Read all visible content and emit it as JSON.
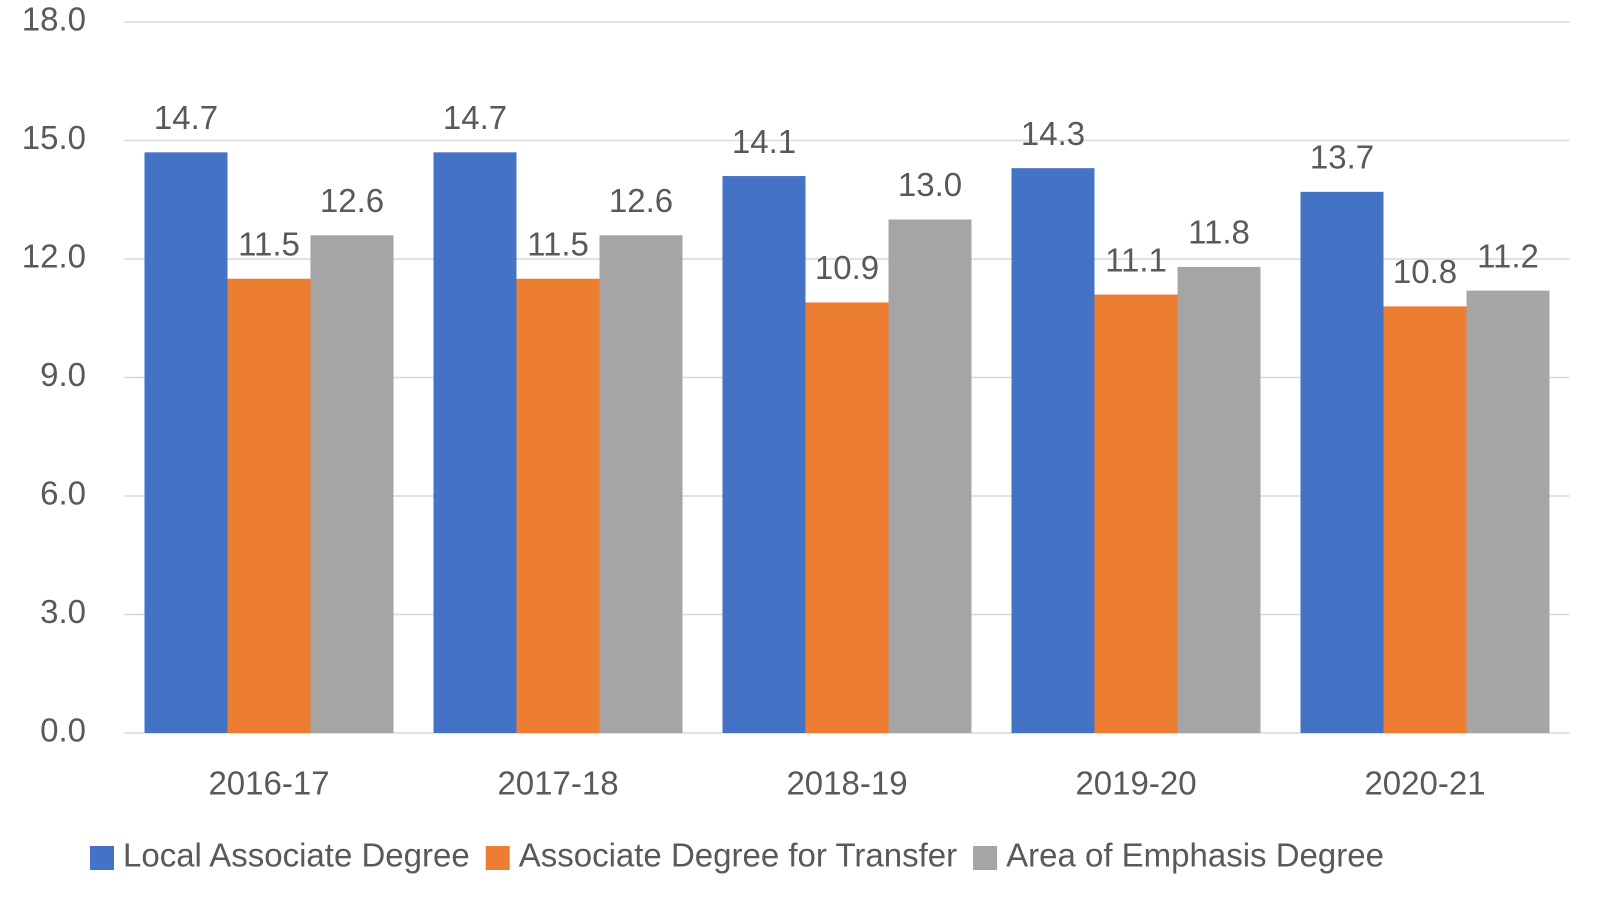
{
  "chart_data": {
    "type": "bar",
    "categories": [
      "2016-17",
      "2017-18",
      "2018-19",
      "2019-20",
      "2020-21"
    ],
    "series": [
      {
        "name": "Local Associate Degree",
        "color": "#4472c4",
        "values": [
          14.7,
          14.7,
          14.1,
          14.3,
          13.7
        ],
        "value_labels": [
          "14.7",
          "14.7",
          "14.1",
          "14.3",
          "13.7"
        ]
      },
      {
        "name": "Associate Degree for Transfer",
        "color": "#ed7d31",
        "values": [
          11.5,
          11.5,
          10.9,
          11.1,
          10.8
        ],
        "value_labels": [
          "11.5",
          "11.5",
          "10.9",
          "11.1",
          "10.8"
        ]
      },
      {
        "name": "Area of Emphasis Degree",
        "color": "#a5a5a5",
        "values": [
          12.6,
          12.6,
          13.0,
          11.8,
          11.2
        ],
        "value_labels": [
          "12.6",
          "12.6",
          "13.0",
          "11.8",
          "11.2"
        ]
      }
    ],
    "ylim": [
      0,
      18
    ],
    "yticks": [
      {
        "value": 0,
        "label": "0.0"
      },
      {
        "value": 3,
        "label": "3.0"
      },
      {
        "value": 6,
        "label": "6.0"
      },
      {
        "value": 9,
        "label": "9.0"
      },
      {
        "value": 12,
        "label": "12.0"
      },
      {
        "value": 15,
        "label": "15.0"
      },
      {
        "value": 18,
        "label": "18.0"
      }
    ],
    "grid": true,
    "legend": "bottom"
  }
}
